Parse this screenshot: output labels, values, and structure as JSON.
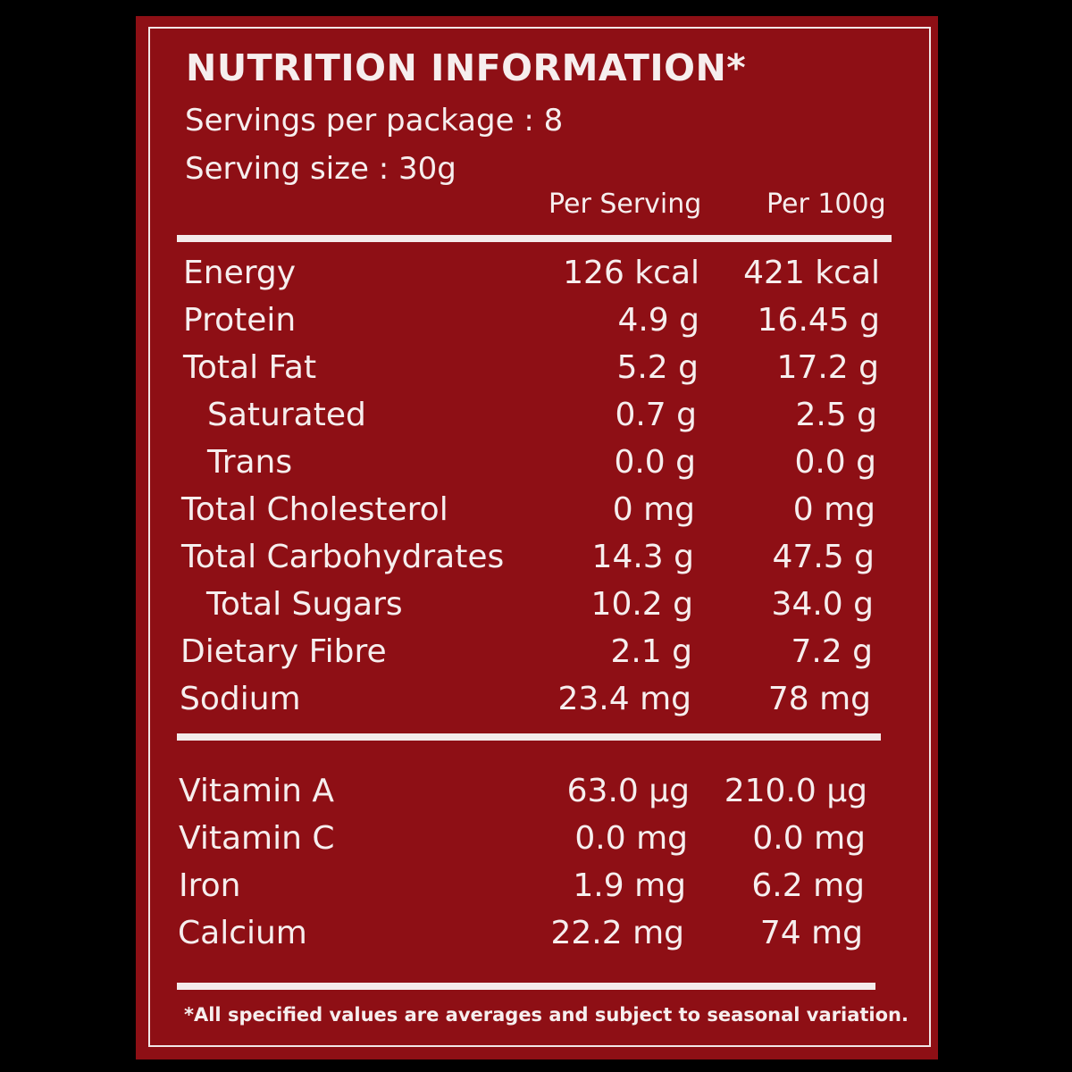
{
  "title": "NUTRITION INFORMATION*",
  "servings_per_package": "Servings per package : 8",
  "serving_size": "Serving size : 30g",
  "columns": {
    "per_serving": "Per Serving",
    "per_100g": "Per 100g"
  },
  "nutrients": [
    {
      "name": "Energy",
      "per_serving": "126 kcal",
      "per_100g": "421 kcal"
    },
    {
      "name": "Protein",
      "per_serving": "4.9 g",
      "per_100g": "16.45 g"
    },
    {
      "name": "Total Fat",
      "per_serving": "5.2 g",
      "per_100g": "17.2 g"
    },
    {
      "name": "Saturated",
      "per_serving": "0.7 g",
      "per_100g": "2.5 g"
    },
    {
      "name": "Trans",
      "per_serving": "0.0 g",
      "per_100g": "0.0 g"
    },
    {
      "name": "Total Cholesterol",
      "per_serving": "0 mg",
      "per_100g": "0 mg"
    },
    {
      "name": "Total Carbohydrates",
      "per_serving": "14.3 g",
      "per_100g": "47.5 g"
    },
    {
      "name": "Total Sugars",
      "per_serving": "10.2 g",
      "per_100g": "34.0 g"
    },
    {
      "name": "Dietary Fibre",
      "per_serving": "2.1 g",
      "per_100g": "7.2 g"
    },
    {
      "name": "Sodium",
      "per_serving": "23.4 mg",
      "per_100g": "78 mg"
    }
  ],
  "vitamins": [
    {
      "name": "Vitamin A",
      "per_serving": "63.0 µg",
      "per_100g": "210.0 µg"
    },
    {
      "name": "Vitamin C",
      "per_serving": "0.0 mg",
      "per_100g": "0.0 mg"
    },
    {
      "name": "Iron",
      "per_serving": "1.9 mg",
      "per_100g": "6.2 mg"
    },
    {
      "name": "Calcium",
      "per_serving": "22.2 mg",
      "per_100g": "74 mg"
    }
  ],
  "footnote": "*All specified values are averages and subject to seasonal variation.",
  "colors": {
    "panel": "#8e0f15",
    "text": "#f6eeee",
    "background": "#000000"
  }
}
